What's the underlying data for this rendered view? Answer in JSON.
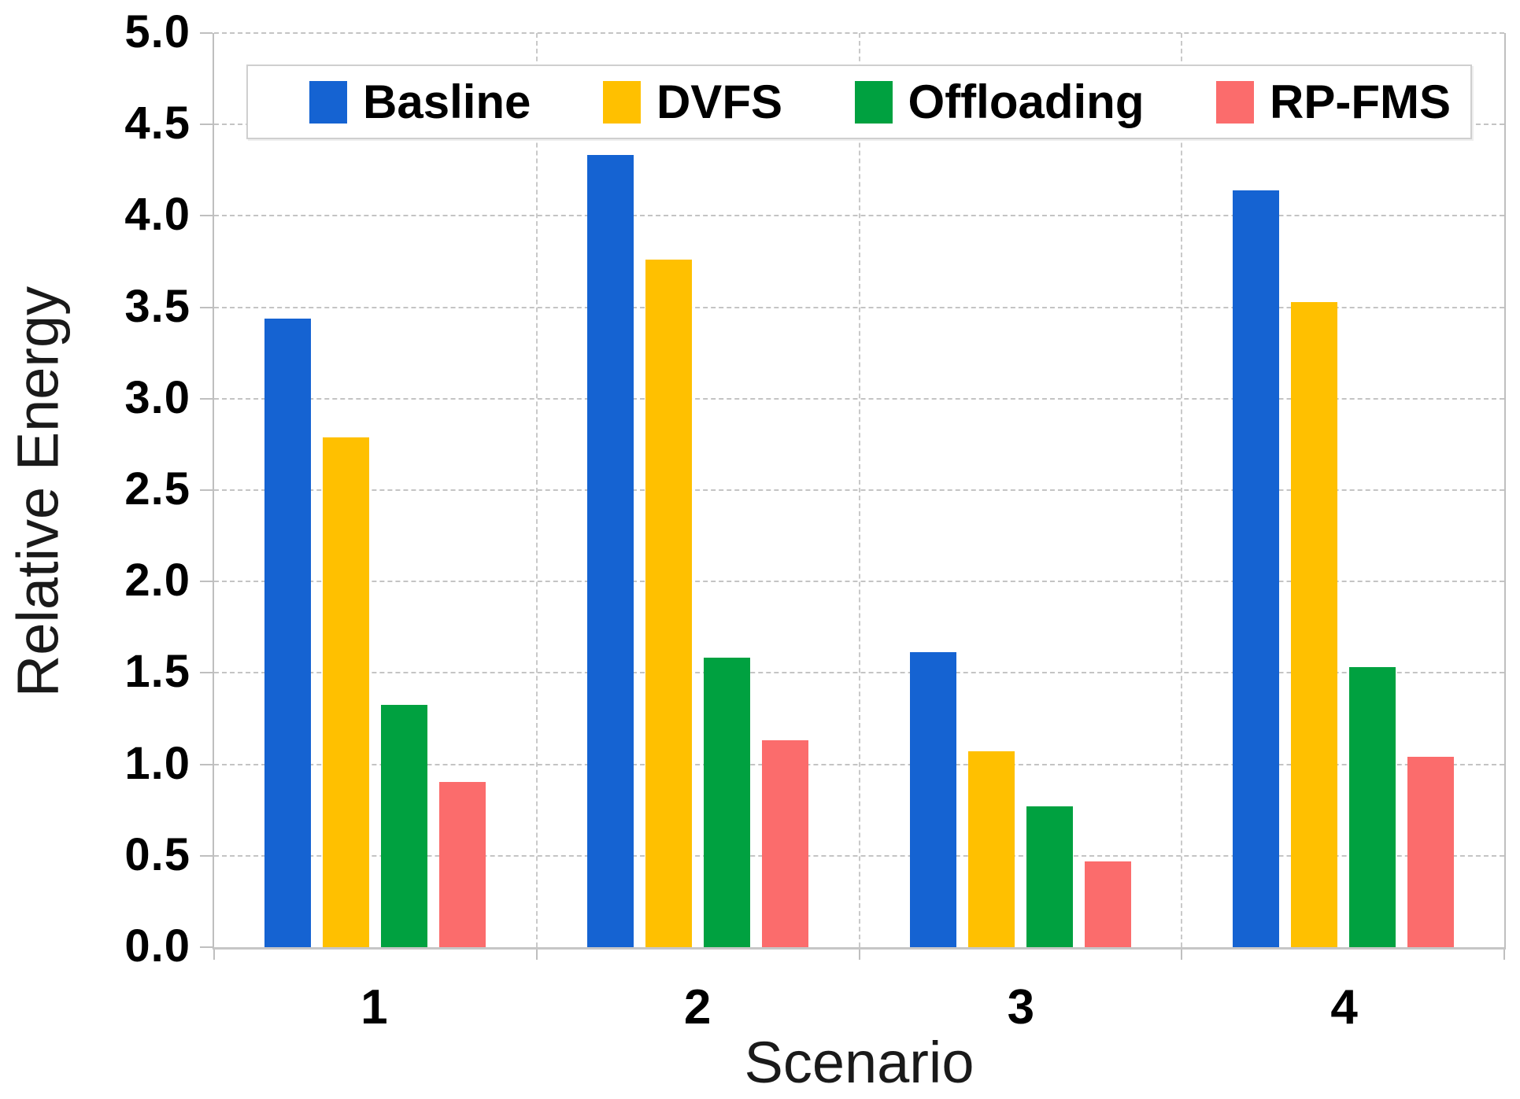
{
  "figure": {
    "background": "#ffffff"
  },
  "chart_data": {
    "type": "bar",
    "title": "",
    "xlabel": "Scenario",
    "ylabel": "Relative Energy",
    "categories": [
      "1",
      "2",
      "3",
      "4"
    ],
    "series": [
      {
        "name": "Basline",
        "color": "#1563D2",
        "values": [
          3.43,
          4.32,
          1.61,
          4.13
        ]
      },
      {
        "name": "DVFS",
        "color": "#FFC000",
        "values": [
          2.78,
          3.75,
          1.07,
          3.52
        ]
      },
      {
        "name": "Offloading",
        "color": "#00A140",
        "values": [
          1.32,
          1.58,
          0.77,
          1.53
        ]
      },
      {
        "name": "RP-FMS",
        "color": "#FB6C6C",
        "values": [
          0.9,
          1.13,
          0.47,
          1.04
        ]
      }
    ],
    "ylim": [
      0,
      5
    ],
    "ytick_step": 0.5,
    "yticks": [
      "0.0",
      "0.5",
      "1.0",
      "1.5",
      "2.0",
      "2.5",
      "3.0",
      "3.5",
      "4.0",
      "4.5",
      "5.0"
    ],
    "grid": "dashed horizontal gridlines at each 0.5; dashed vertical separators between categories",
    "legend_position": "top inside, horizontal box",
    "palette": {
      "axis_line": "#bfbfbf",
      "grid_line": "#c4c4c4",
      "legend_border": "#cfcfcf",
      "text": "#000000"
    }
  }
}
